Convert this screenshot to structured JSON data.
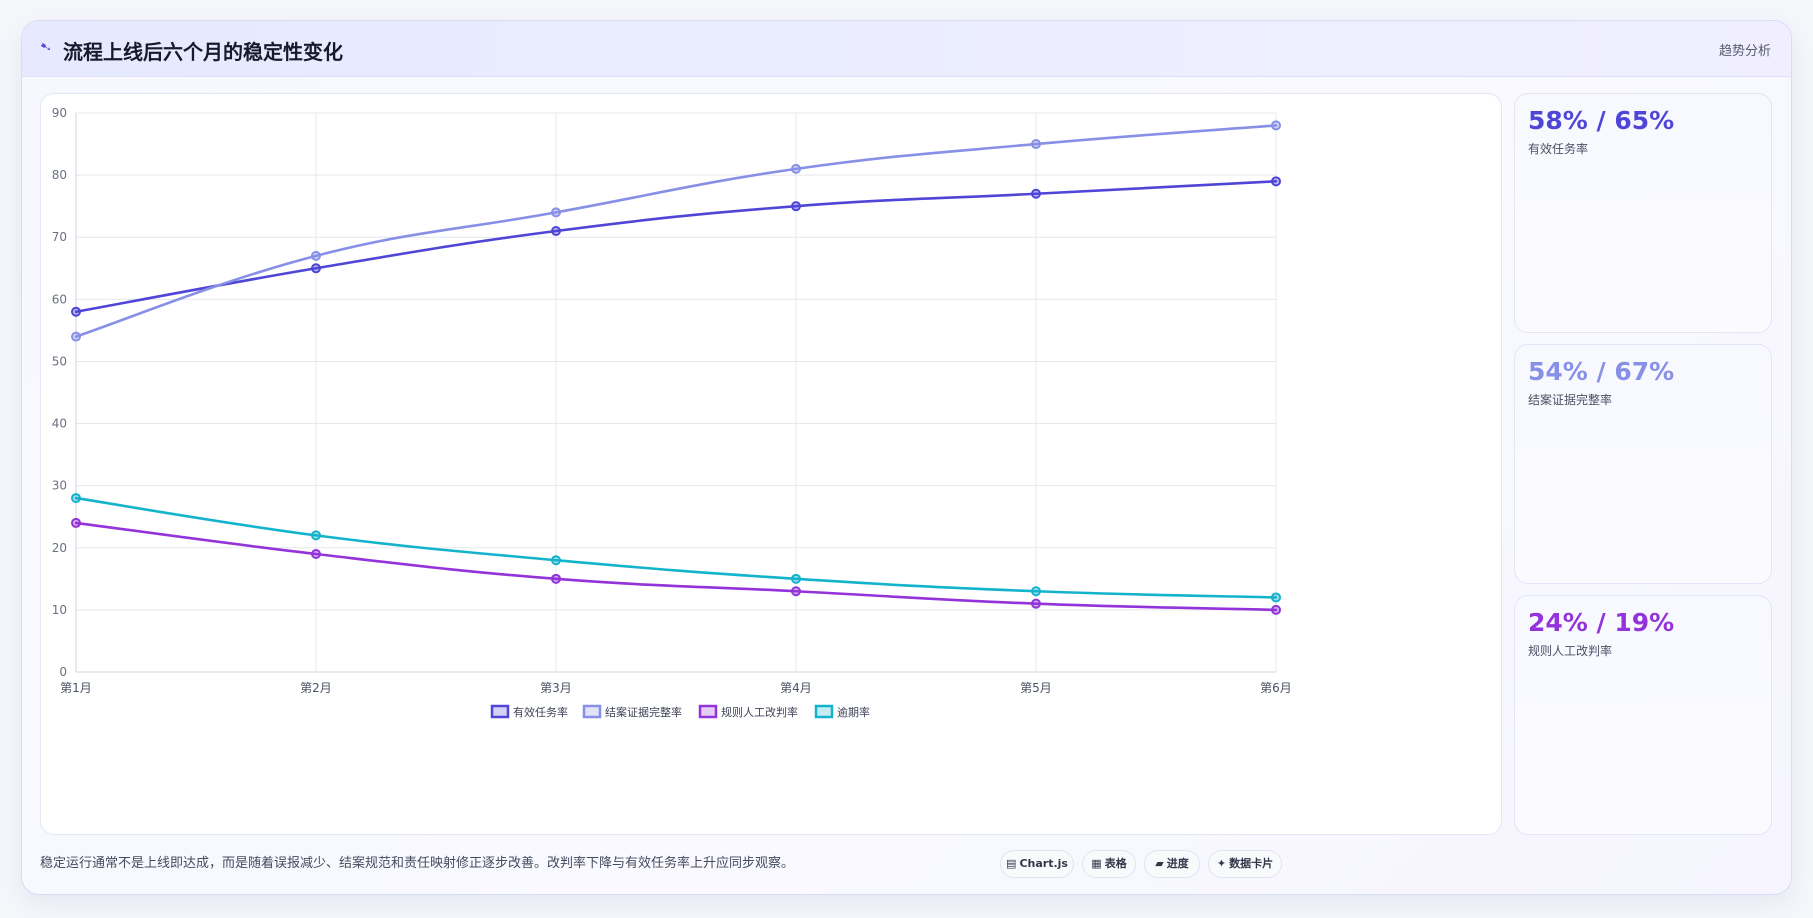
{
  "header": {
    "title": "流程上线后六个月的稳定性变化",
    "tag": "趋势分析",
    "title_icon": "trend-icon"
  },
  "chart_data": {
    "type": "line",
    "title": "",
    "xlabel": "",
    "ylabel": "",
    "categories": [
      "第1月",
      "第2月",
      "第3月",
      "第4月",
      "第5月",
      "第6月"
    ],
    "ylim": [
      0,
      90
    ],
    "yticks": [
      0,
      10,
      20,
      30,
      40,
      50,
      60,
      70,
      80,
      90
    ],
    "grid": true,
    "legend_position": "bottom",
    "series": [
      {
        "name": "有效任务率",
        "color": "#4f46d8",
        "values": [
          58,
          65,
          71,
          75,
          77,
          79
        ]
      },
      {
        "name": "结案证据完整率",
        "color": "#8790e6",
        "values": [
          54,
          67,
          74,
          81,
          85,
          88
        ]
      },
      {
        "name": "规则人工改判率",
        "color": "#9333d9",
        "values": [
          24,
          19,
          15,
          13,
          11,
          10
        ]
      },
      {
        "name": "逾期率",
        "color": "#14b3cc",
        "values": [
          28,
          22,
          18,
          15,
          13,
          12
        ]
      }
    ]
  },
  "stats": [
    {
      "value": "58% / 65%",
      "label": "有效任务率",
      "color": "#4f46d8"
    },
    {
      "value": "54% / 67%",
      "label": "结案证据完整率",
      "color": "#8790e6"
    },
    {
      "value": "24% / 19%",
      "label": "规则人工改判率",
      "color": "#9333d9"
    }
  ],
  "footnote": "稳定运行通常不是上线即达成，而是随着误报减少、结案规范和责任映射修正逐步改善。改判率下降与有效任务率上升应同步观察。",
  "pills": [
    {
      "label": "Chart.js",
      "icon": "▤"
    },
    {
      "label": "表格",
      "icon": "▦"
    },
    {
      "label": "进度",
      "icon": "▰"
    },
    {
      "label": "数据卡片",
      "icon": "✦"
    }
  ]
}
